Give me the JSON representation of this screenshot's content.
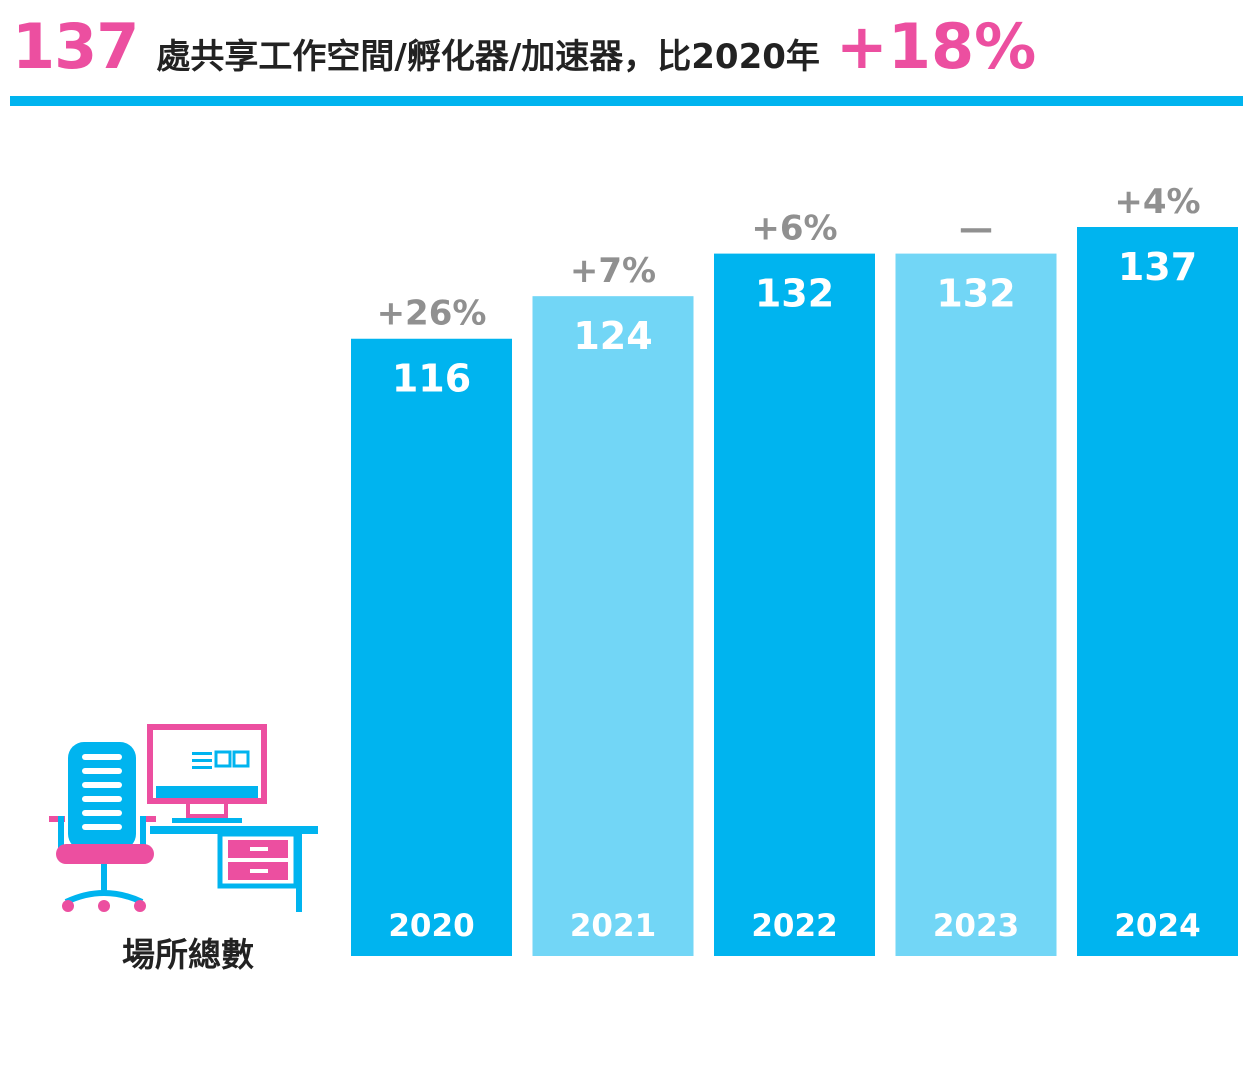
{
  "header": {
    "count": "137",
    "subtitle": "處共享工作空間/孵化器/加速器，比2020年",
    "growth": "+18%"
  },
  "colors": {
    "pink": "#ec4fa0",
    "blue": "#00b4ef",
    "light_blue": "#72d6f6",
    "change_gray": "#909090"
  },
  "icon": {
    "name": "office-desk-icon"
  },
  "caption": "場所總數",
  "chart_data": {
    "type": "bar",
    "categories": [
      "2020",
      "2021",
      "2022",
      "2023",
      "2024"
    ],
    "values": [
      116,
      124,
      132,
      132,
      137
    ],
    "value_labels": [
      "116",
      "124",
      "132",
      "132",
      "137"
    ],
    "change_labels": [
      "+26%",
      "+7%",
      "+6%",
      "—",
      "+4%"
    ],
    "bar_colors": [
      "#00b4ef",
      "#72d6f6",
      "#00b4ef",
      "#72d6f6",
      "#00b4ef"
    ],
    "title": "",
    "xlabel": "",
    "ylabel": "場所總數",
    "ylim": [
      0,
      137
    ],
    "grid": false,
    "legend": "none"
  }
}
